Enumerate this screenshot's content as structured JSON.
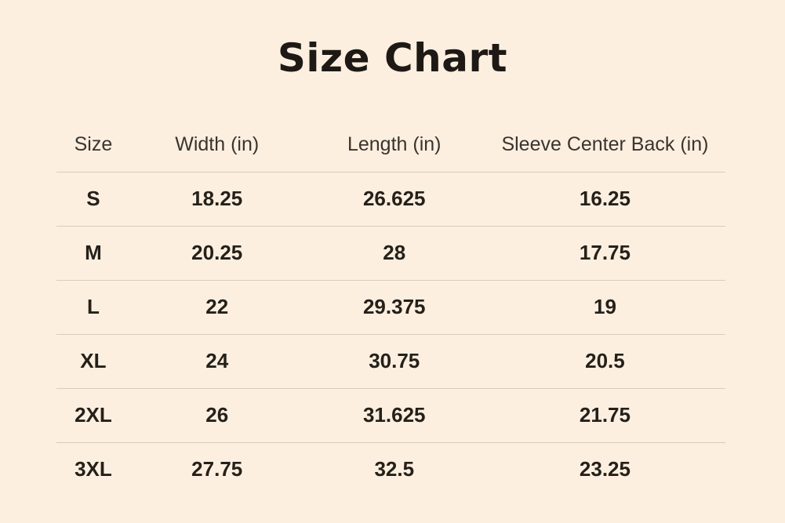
{
  "theme": {
    "background": "#fcefe0",
    "divider": "#d8ccbe",
    "title_text": "#1e1914",
    "header_text": "#3a342e",
    "cell_text": "#252019"
  },
  "chart_data": {
    "type": "table",
    "title": "Size Chart",
    "columns": [
      "Size",
      "Width (in)",
      "Length (in)",
      "Sleeve Center Back (in)"
    ],
    "rows": [
      {
        "size": "S",
        "values": [
          "18.25",
          "26.625",
          "16.25"
        ]
      },
      {
        "size": "M",
        "values": [
          "20.25",
          "28",
          "17.75"
        ]
      },
      {
        "size": "L",
        "values": [
          "22",
          "29.375",
          "19"
        ]
      },
      {
        "size": "XL",
        "values": [
          "24",
          "30.75",
          "20.5"
        ]
      },
      {
        "size": "2XL",
        "values": [
          "26",
          "31.625",
          "21.75"
        ]
      },
      {
        "size": "3XL",
        "values": [
          "27.75",
          "32.5",
          "23.25"
        ]
      }
    ],
    "layout": {
      "grid": "horizontal-row-dividers-only",
      "header_weight": "regular",
      "cell_weight": "bold",
      "alignment": "center"
    }
  }
}
